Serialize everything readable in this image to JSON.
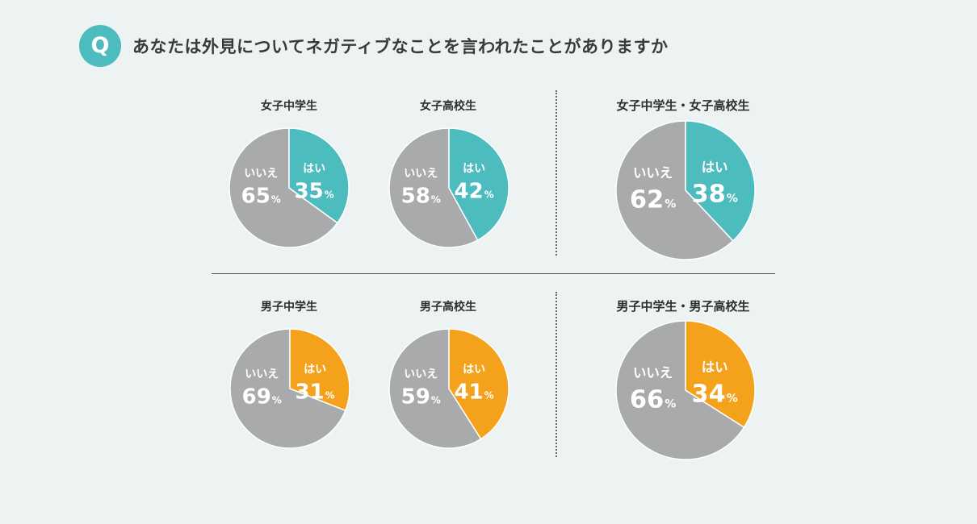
{
  "header": {
    "badge": "Q",
    "question": "あなたは外見についてネガティブなことを言われたことがありますか"
  },
  "colors": {
    "girls_yes": "#4dbcbf",
    "boys_yes": "#f4a21c",
    "no": "#a9aaac",
    "badge": "#4dbcbf"
  },
  "chart_data": [
    {
      "type": "pie",
      "title": "女子中学生",
      "group": "girls",
      "labels": [
        "はい",
        "いいえ"
      ],
      "values": [
        35,
        65
      ],
      "unit": "%"
    },
    {
      "type": "pie",
      "title": "女子高校生",
      "group": "girls",
      "labels": [
        "はい",
        "いいえ"
      ],
      "values": [
        42,
        58
      ],
      "unit": "%"
    },
    {
      "type": "pie",
      "title": "女子中学生・女子高校生",
      "group": "girls",
      "labels": [
        "はい",
        "いいえ"
      ],
      "values": [
        38,
        62
      ],
      "unit": "%"
    },
    {
      "type": "pie",
      "title": "男子中学生",
      "group": "boys",
      "labels": [
        "はい",
        "いいえ"
      ],
      "values": [
        31,
        69
      ],
      "unit": "%"
    },
    {
      "type": "pie",
      "title": "男子高校生",
      "group": "boys",
      "labels": [
        "はい",
        "いいえ"
      ],
      "values": [
        41,
        59
      ],
      "unit": "%"
    },
    {
      "type": "pie",
      "title": "男子中学生・男子高校生",
      "group": "boys",
      "labels": [
        "はい",
        "いいえ"
      ],
      "values": [
        34,
        66
      ],
      "unit": "%"
    }
  ]
}
